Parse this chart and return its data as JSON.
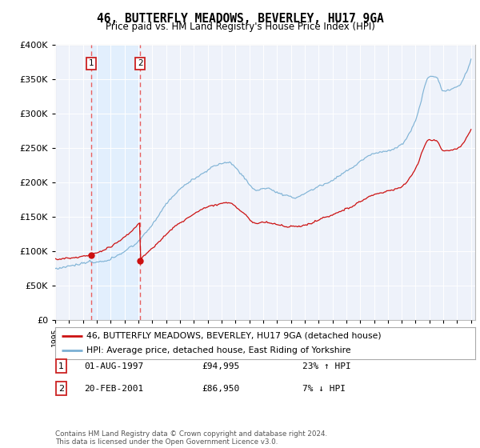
{
  "title": "46, BUTTERFLY MEADOWS, BEVERLEY, HU17 9GA",
  "subtitle": "Price paid vs. HM Land Registry's House Price Index (HPI)",
  "legend_line1": "46, BUTTERFLY MEADOWS, BEVERLEY, HU17 9GA (detached house)",
  "legend_line2": "HPI: Average price, detached house, East Riding of Yorkshire",
  "sale1_label": "1",
  "sale1_date": "01-AUG-1997",
  "sale1_price": 94995,
  "sale1_hpi_text": "23% ↑ HPI",
  "sale1_year": 1997.583,
  "sale2_label": "2",
  "sale2_date": "20-FEB-2001",
  "sale2_price": 86950,
  "sale2_hpi_text": "7% ↓ HPI",
  "sale2_year": 2001.13,
  "footer": "Contains HM Land Registry data © Crown copyright and database right 2024.\nThis data is licensed under the Open Government Licence v3.0.",
  "hpi_color": "#7ab0d4",
  "price_color": "#cc1111",
  "dashed_color": "#e86060",
  "shade_color": "#ddeeff",
  "background_plot": "#eef2fa",
  "background_fig": "#ffffff",
  "grid_color": "#ffffff",
  "ylim": [
    0,
    400000
  ],
  "xlim": [
    1995.0,
    2025.3
  ],
  "hpi_base_vals": [
    75000,
    75500,
    76000,
    76800,
    77500,
    78200,
    79000,
    79500,
    80000,
    80500,
    81000,
    82000,
    83000,
    84000,
    85000,
    86000,
    88000,
    89500,
    91000,
    93000,
    95000,
    97000,
    99000,
    101000,
    103000,
    106000,
    109000,
    112000,
    115000,
    118500,
    122000,
    127000,
    132000,
    138000,
    144000,
    150000,
    156000,
    161000,
    165000,
    169000,
    173000,
    177000,
    181000,
    185000,
    189000,
    193000,
    197000,
    200000,
    202000,
    204000,
    205500,
    207000,
    209000,
    211000,
    214000,
    217000,
    220000,
    222000,
    224000,
    226000,
    228000,
    229000,
    230000,
    232000,
    233000,
    232000,
    228000,
    222000,
    215000,
    207000,
    199000,
    192000,
    186000,
    181000,
    178000,
    176000,
    178000,
    181000,
    184000,
    187000,
    190000,
    191000,
    190000,
    189000,
    187000,
    185000,
    183000,
    182000,
    181000,
    180000,
    179000,
    179000,
    180000,
    181000,
    182000,
    183000,
    185000,
    187000,
    189000,
    191000,
    193000,
    195000,
    197000,
    199000,
    201000,
    203000,
    206000,
    209000,
    212000,
    215000,
    218000,
    220000,
    222000,
    224000,
    226000,
    228000,
    230000,
    232000,
    234000,
    236000,
    238000,
    240000,
    241000,
    242000,
    243000,
    244000,
    245000,
    246000,
    247000,
    248000,
    249000,
    250000,
    251000,
    252000,
    253000,
    254000,
    256000,
    258000,
    260000,
    262000,
    264000,
    266000,
    268000,
    270000,
    272000,
    274000,
    276000,
    278000,
    280000,
    282000,
    284000,
    286000,
    288000,
    290000,
    292000,
    294000,
    298000,
    302000,
    306000,
    310000,
    314000,
    316000,
    318000,
    320000,
    322000,
    324000,
    326000,
    327000,
    328000,
    330000,
    332000,
    334000,
    336000,
    338000,
    340000,
    345000,
    350000,
    355000,
    358000,
    360000,
    362000,
    361000,
    358000,
    354000,
    349000,
    344000,
    340000,
    337000,
    335000,
    334000,
    333000,
    332000,
    332000,
    333000,
    335000,
    337000,
    339000,
    341000,
    343000,
    345000,
    347000,
    349000,
    351000,
    353000,
    355000,
    357000,
    358000,
    359000,
    360000,
    362000,
    364000,
    366000,
    367000,
    368000,
    369000,
    370000,
    372000,
    374000,
    376000,
    378000,
    380000,
    382000,
    383000,
    384000,
    385000,
    386000,
    384000,
    380000,
    376000
  ]
}
